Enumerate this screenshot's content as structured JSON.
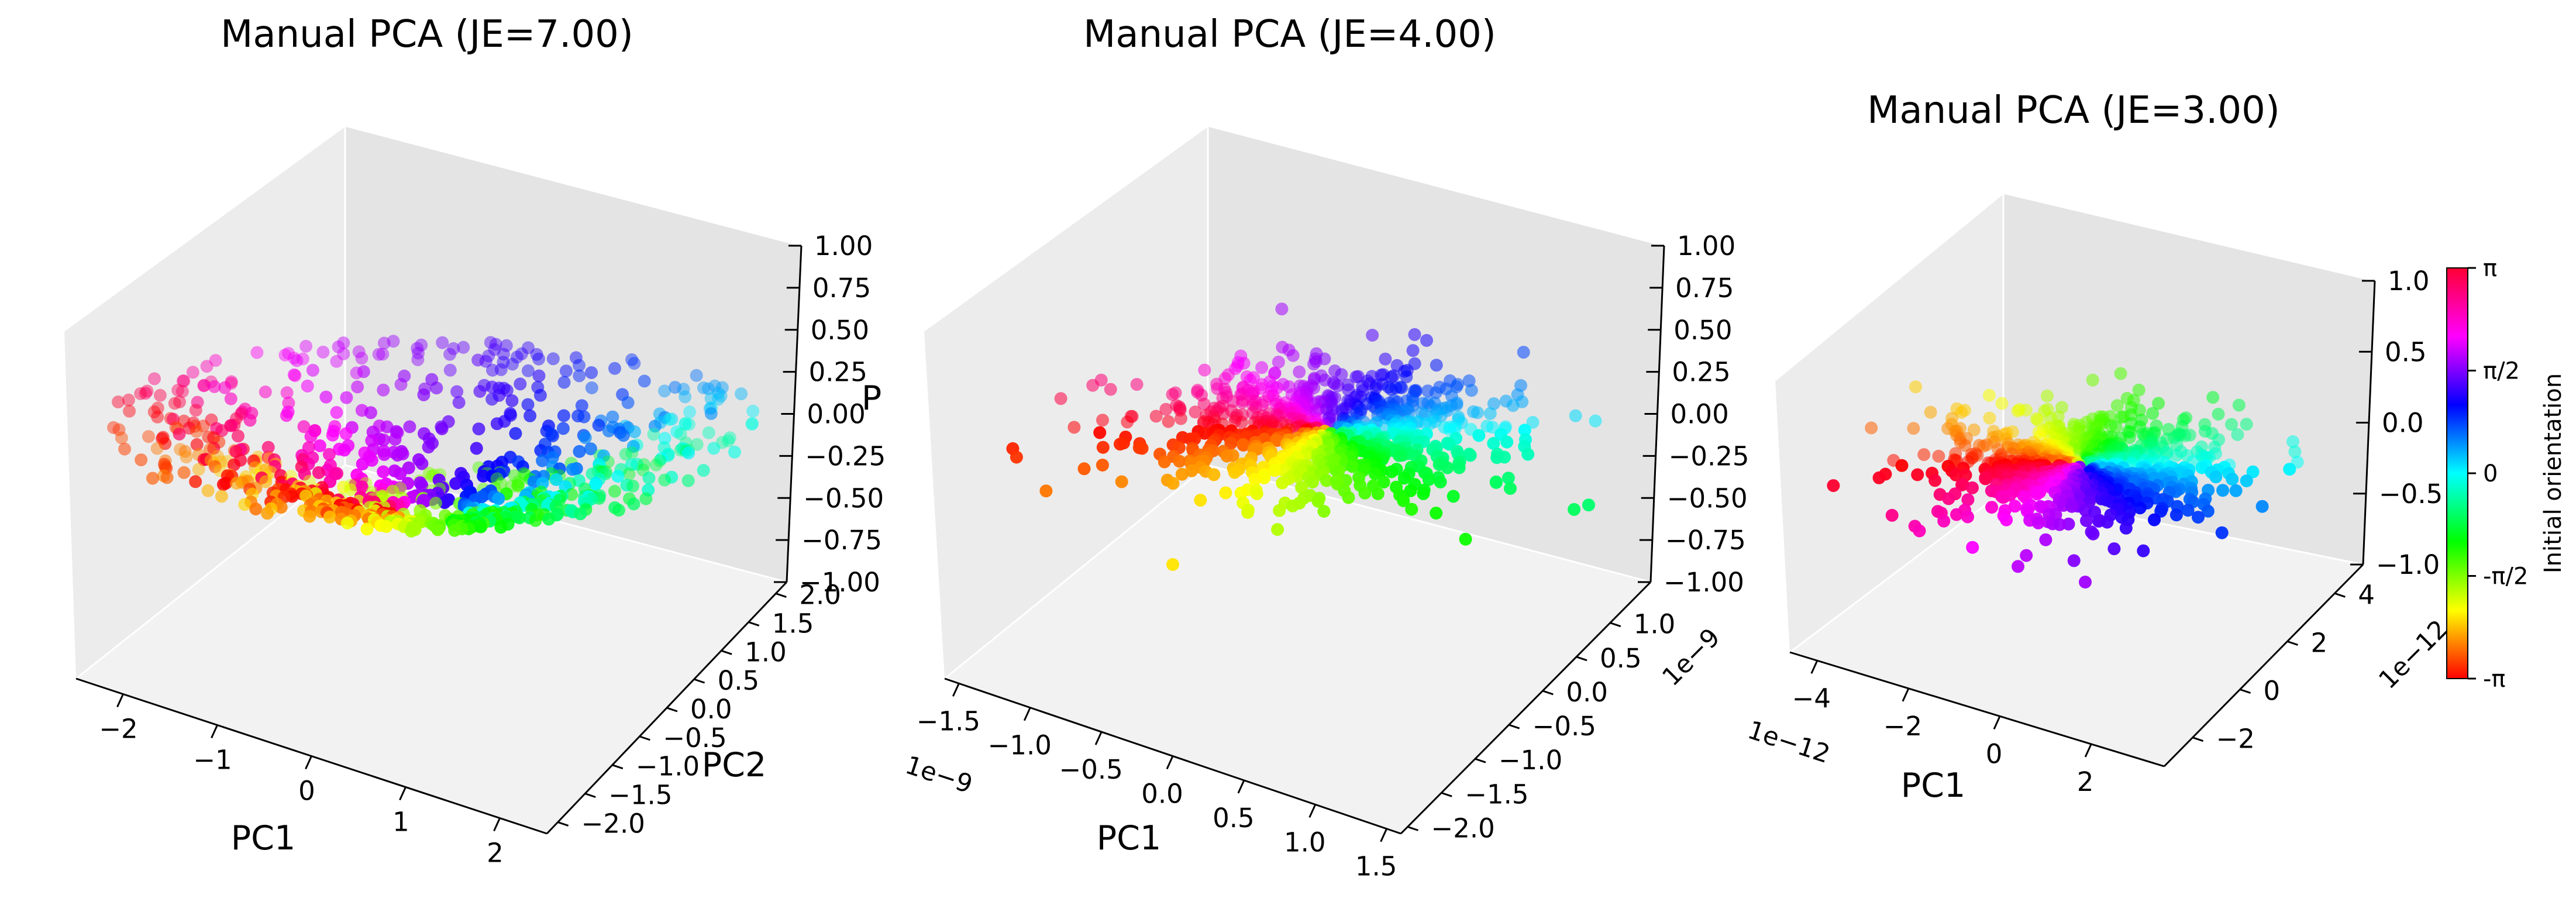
{
  "figure": {
    "background": "#ffffff",
    "pane_color": "#f2f2f2",
    "grid": false
  },
  "colorbar": {
    "label": "Initial orientation",
    "ticks": [
      "π",
      "π/2",
      "0",
      "-π/2",
      "-π"
    ],
    "colormap": "hsv",
    "range": [
      "-π",
      "π"
    ]
  },
  "chart_data": [
    {
      "type": "scatter",
      "projection": "3d",
      "title": "Manual PCA (JE=7.00)",
      "xlabel": "PC1",
      "ylabel": "PC2",
      "zlabel": "P",
      "xlim": [
        -2.5,
        2.5
      ],
      "ylim": [
        -2.2,
        2.2
      ],
      "zlim": [
        -1,
        1
      ],
      "x_ticks": [
        "−2",
        "−1",
        "0",
        "1",
        "2"
      ],
      "y_ticks": [
        "−2.0",
        "−1.5",
        "−1.0",
        "−0.5",
        "0.0",
        "0.5",
        "1.0",
        "1.5",
        "2.0"
      ],
      "z_ticks": [
        "−1.00",
        "−0.75",
        "−0.50",
        "−0.25",
        "0.00",
        "0.25",
        "0.50",
        "0.75",
        "1.00"
      ],
      "x_offset": "",
      "y_offset": "",
      "color_by": "initial orientation (-π to π)",
      "point_count": 800,
      "shape": "V-shaped surface: points at radius |r| ≤ 2 rising with distance from origin, colored by angle"
    },
    {
      "type": "scatter",
      "projection": "3d",
      "title": "Manual PCA (JE=4.00)",
      "xlabel": "PC1",
      "ylabel": "",
      "zlabel": "",
      "xlim": [
        -1.6e-09,
        1.6e-09
      ],
      "ylim": [
        -2.1e-09,
        1.6e-09
      ],
      "zlim": [
        -1,
        1
      ],
      "x_ticks": [
        "−1.5",
        "−1.0",
        "−0.5",
        "0.0",
        "0.5",
        "1.0",
        "1.5"
      ],
      "y_ticks": [
        "−2.0",
        "−1.5",
        "−1.0",
        "−0.5",
        "0.0",
        "0.5",
        "1.0"
      ],
      "z_ticks": [
        "−1.00",
        "−0.75",
        "−0.50",
        "−0.25",
        "0.00",
        "0.25",
        "0.50",
        "0.75",
        "1.00"
      ],
      "x_offset": "1e−9",
      "y_offset": "1e−9",
      "color_by": "initial orientation (-π to π)",
      "point_count": 800,
      "shape": "flat disk near z=0 with radial color wedges"
    },
    {
      "type": "scatter",
      "projection": "3d",
      "title": "Manual PCA (JE=3.00)",
      "xlabel": "PC1",
      "ylabel": "",
      "zlabel": "",
      "xlim": [
        -4.6e-12,
        3.6e-12
      ],
      "ylim": [
        -3.2e-12,
        5.2e-12
      ],
      "zlim": [
        -1,
        1
      ],
      "x_ticks": [
        "−4",
        "−2",
        "0",
        "2"
      ],
      "y_ticks": [
        "−2",
        "0",
        "2",
        "4"
      ],
      "z_ticks": [
        "−1.0",
        "−0.5",
        "0.0",
        "0.5",
        "1.0"
      ],
      "x_offset": "1e−12",
      "y_offset": "1e−12",
      "color_by": "initial orientation (-π to π)",
      "point_count": 800,
      "shape": "flat disk near z=0 with radial color wedges"
    }
  ]
}
